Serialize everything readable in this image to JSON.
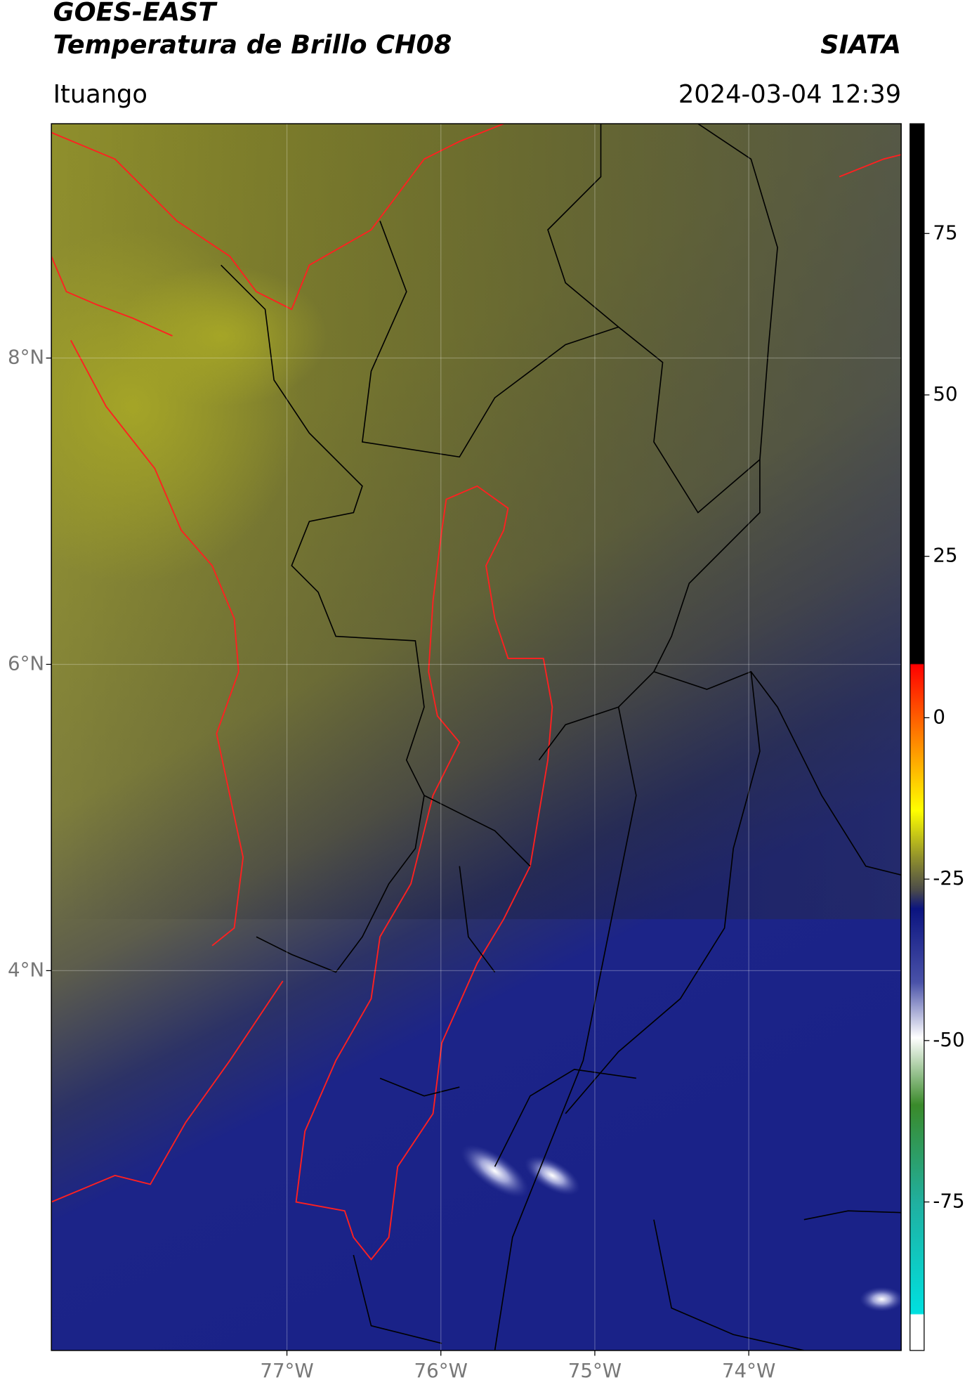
{
  "header": {
    "title": "GOES-EAST",
    "subtitle": "Temperatura de Brillo CH08",
    "organization": "SIATA",
    "region": "Ituango",
    "datetime": "2024-03-04 12:39"
  },
  "map": {
    "latlim": [
      1.52,
      9.53
    ],
    "lonlim": [
      -78.53,
      -73.01
    ],
    "lat_ticks": [
      {
        "value": 8,
        "label": "8°N"
      },
      {
        "value": 6,
        "label": "6°N"
      },
      {
        "value": 4,
        "label": "4°N"
      }
    ],
    "lon_ticks": [
      {
        "value": -77,
        "label": "77°W"
      },
      {
        "value": -76,
        "label": "76°W"
      },
      {
        "value": -75,
        "label": "75°W"
      },
      {
        "value": -74,
        "label": "74°W"
      }
    ],
    "grid": true
  },
  "colorbar": {
    "lim": [
      -98,
      92
    ],
    "ticks": [
      75,
      50,
      25,
      0,
      -25,
      -50,
      -75
    ]
  }
}
